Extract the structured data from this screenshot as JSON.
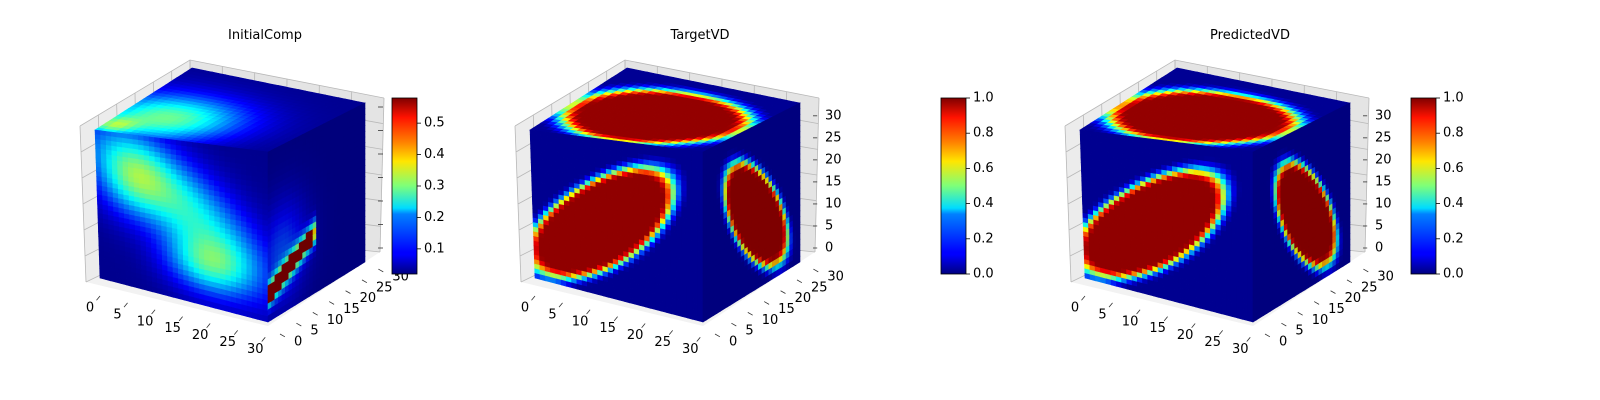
{
  "chart_data": [
    {
      "type": "heatmap",
      "subtype": "3d-voxel",
      "title": "InitialComp",
      "colormap": "jet",
      "xlabel": "",
      "ylabel": "",
      "zlabel": "",
      "x_ticks": [
        0,
        5,
        10,
        15,
        20,
        25,
        30
      ],
      "y_ticks": [
        0,
        5,
        10,
        15,
        20,
        25,
        30
      ],
      "z_ticks": [],
      "grid": true,
      "colorbar": {
        "range": [
          0.02,
          0.58
        ],
        "ticks": [
          0.1,
          0.2,
          0.3,
          0.4,
          0.5
        ],
        "labels": [
          "0.1",
          "0.2",
          "0.3",
          "0.4",
          "0.5"
        ]
      }
    },
    {
      "type": "heatmap",
      "subtype": "3d-voxel",
      "title": "TargetVD",
      "colormap": "jet",
      "xlabel": "",
      "ylabel": "",
      "zlabel": "",
      "x_ticks": [
        0,
        5,
        10,
        15,
        20,
        25,
        30
      ],
      "y_ticks": [
        0,
        5,
        10,
        15,
        20,
        25,
        30
      ],
      "z_ticks": [
        0,
        5,
        10,
        15,
        20,
        25,
        30
      ],
      "grid": true,
      "colorbar": {
        "range": [
          0.0,
          1.0
        ],
        "ticks": [
          0.0,
          0.2,
          0.4,
          0.6,
          0.8,
          1.0
        ],
        "labels": [
          "0.0",
          "0.2",
          "0.4",
          "0.6",
          "0.8",
          "1.0"
        ]
      }
    },
    {
      "type": "heatmap",
      "subtype": "3d-voxel",
      "title": "PredictedVD",
      "colormap": "jet",
      "xlabel": "",
      "ylabel": "",
      "zlabel": "",
      "x_ticks": [
        0,
        5,
        10,
        15,
        20,
        25,
        30
      ],
      "y_ticks": [
        0,
        5,
        10,
        15,
        20,
        25,
        30
      ],
      "z_ticks": [
        0,
        5,
        10,
        15,
        20,
        25,
        30
      ],
      "grid": true,
      "colorbar": {
        "range": [
          0.0,
          1.0
        ],
        "ticks": [
          0.0,
          0.2,
          0.4,
          0.6,
          0.8,
          1.0
        ],
        "labels": [
          "0.0",
          "0.2",
          "0.4",
          "0.6",
          "0.8",
          "1.0"
        ]
      }
    }
  ]
}
